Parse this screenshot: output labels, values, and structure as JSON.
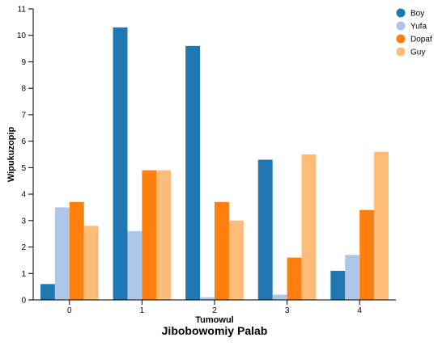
{
  "chart_data": {
    "type": "bar",
    "title": "Jibobowomiy Palab",
    "xlabel": "Tumowul",
    "ylabel": "Wipukuzopip",
    "categories": [
      "0",
      "1",
      "2",
      "3",
      "4"
    ],
    "ylim": [
      0,
      11
    ],
    "yticks": [
      0,
      1,
      2,
      3,
      4,
      5,
      6,
      7,
      8,
      9,
      10,
      11
    ],
    "grid": false,
    "legend_position": "top-right",
    "series": [
      {
        "name": "Boy",
        "color": "#1f77b4",
        "values": [
          0.6,
          10.3,
          9.6,
          5.3,
          1.1
        ]
      },
      {
        "name": "Yufa",
        "color": "#aec7e8",
        "values": [
          3.5,
          2.6,
          0.1,
          0.2,
          1.7
        ]
      },
      {
        "name": "Dopaf",
        "color": "#ff7f0e",
        "values": [
          3.7,
          4.9,
          3.7,
          1.6,
          3.4
        ]
      },
      {
        "name": "Guy",
        "color": "#ffbb78",
        "values": [
          2.8,
          4.9,
          3.0,
          5.5,
          5.6
        ]
      }
    ]
  }
}
